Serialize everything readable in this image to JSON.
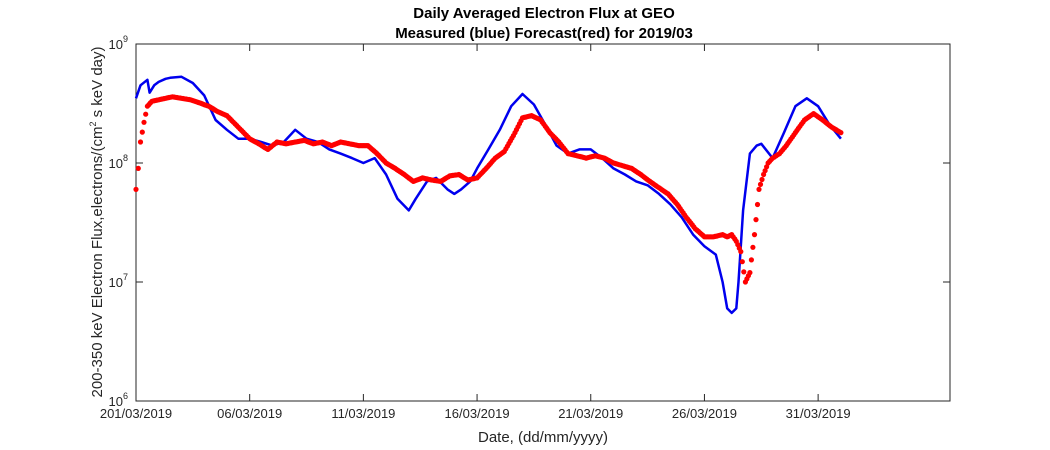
{
  "chart_data": {
    "type": "line",
    "title": "Daily Averaged Electron Flux at GEO",
    "subtitle": "Measured (blue) Forecast(red) for 2019/03",
    "xlabel": "Date, (dd/mm/yyyy)",
    "ylabel": "200-350 keV Electron Flux,electrons/(cm^2 s keV day)",
    "ylabel_parts": {
      "before": "200-350 keV Electron Flux,electrons/(cm",
      "sup": "2",
      "after": " s keV day)"
    },
    "yscale": "log",
    "ylim": [
      1000000,
      1000000000
    ],
    "xlim": [
      1,
      36.8
    ],
    "grid": false,
    "x_tick_labels": [
      "201/03/2019",
      "06/03/2019",
      "11/03/2019",
      "16/03/2019",
      "21/03/2019",
      "26/03/2019",
      "31/03/2019"
    ],
    "x_tick_values": [
      1,
      6,
      11,
      16,
      21,
      26,
      31
    ],
    "y_tick_labels": [
      {
        "base": "10",
        "exp": "6",
        "value": 1000000
      },
      {
        "base": "10",
        "exp": "7",
        "value": 10000000
      },
      {
        "base": "10",
        "exp": "8",
        "value": 100000000
      },
      {
        "base": "10",
        "exp": "9",
        "value": 1000000000
      }
    ],
    "series": [
      {
        "name": "Measured",
        "color": "#0000ee",
        "style": "line",
        "x": [
          1.0,
          1.2,
          1.5,
          1.6,
          1.8,
          2.0,
          2.3,
          2.5,
          3.0,
          3.5,
          4.0,
          4.5,
          5.0,
          5.5,
          6.0,
          6.5,
          7.0,
          7.5,
          8.0,
          8.5,
          9.0,
          9.5,
          10.0,
          10.5,
          11.0,
          11.5,
          12.0,
          12.5,
          13.0,
          13.3,
          13.8,
          14.2,
          14.7,
          15.0,
          15.3,
          15.7,
          16.0,
          16.5,
          17.0,
          17.5,
          18.0,
          18.5,
          19.0,
          19.5,
          20.0,
          20.5,
          21.0,
          21.5,
          22.0,
          22.5,
          23.0,
          23.5,
          24.0,
          24.5,
          25.0,
          25.5,
          26.0,
          26.5,
          26.8,
          27.0,
          27.2,
          27.4,
          27.5,
          27.7,
          28.0,
          28.3,
          28.5,
          29.0,
          29.5,
          30.0,
          30.5,
          31.0,
          31.5,
          32.0
        ],
        "y": [
          350000000,
          450000000,
          500000000,
          390000000,
          450000000,
          480000000,
          510000000,
          520000000,
          530000000,
          470000000,
          370000000,
          230000000,
          190000000,
          160000000,
          160000000,
          150000000,
          140000000,
          150000000,
          190000000,
          160000000,
          150000000,
          130000000,
          120000000,
          110000000,
          100000000,
          110000000,
          80000000,
          50000000,
          40000000,
          50000000,
          70000000,
          75000000,
          60000000,
          55000000,
          60000000,
          70000000,
          90000000,
          130000000,
          190000000,
          300000000,
          380000000,
          310000000,
          210000000,
          140000000,
          120000000,
          130000000,
          130000000,
          110000000,
          90000000,
          80000000,
          70000000,
          65000000,
          55000000,
          45000000,
          35000000,
          25000000,
          20000000,
          17000000,
          10000000,
          6000000,
          5500000,
          6000000,
          10000000,
          40000000,
          120000000,
          140000000,
          145000000,
          110000000,
          180000000,
          300000000,
          350000000,
          300000000,
          210000000,
          160000000
        ]
      },
      {
        "name": "Forecast",
        "color": "#ff0000",
        "style": "markers",
        "x": [
          1.0,
          1.1,
          1.2,
          1.35,
          1.5,
          1.7,
          2.0,
          2.3,
          2.6,
          3.0,
          3.4,
          3.8,
          4.2,
          4.6,
          5.0,
          5.5,
          6.0,
          6.4,
          6.8,
          7.2,
          7.6,
          8.0,
          8.4,
          8.8,
          9.2,
          9.6,
          10.0,
          10.4,
          10.8,
          11.2,
          11.6,
          12.0,
          12.4,
          12.8,
          13.2,
          13.6,
          14.0,
          14.4,
          14.8,
          15.2,
          15.6,
          16.0,
          16.4,
          16.8,
          17.2,
          17.6,
          18.0,
          18.4,
          18.8,
          19.2,
          19.6,
          20.0,
          20.4,
          20.8,
          21.2,
          21.6,
          22.0,
          22.4,
          22.8,
          23.2,
          23.6,
          24.0,
          24.4,
          24.8,
          25.2,
          25.6,
          26.0,
          26.4,
          26.8,
          27.0,
          27.2,
          27.4,
          27.6,
          27.8,
          28.0,
          28.2,
          28.4,
          28.6,
          28.8,
          29.0,
          29.3,
          29.6,
          30.0,
          30.4,
          30.8,
          31.2,
          31.6,
          32.0
        ],
        "y": [
          60000000,
          90000000,
          150000000,
          220000000,
          300000000,
          330000000,
          340000000,
          350000000,
          360000000,
          350000000,
          340000000,
          320000000,
          300000000,
          270000000,
          250000000,
          200000000,
          160000000,
          145000000,
          130000000,
          150000000,
          145000000,
          150000000,
          155000000,
          145000000,
          150000000,
          140000000,
          150000000,
          145000000,
          140000000,
          140000000,
          120000000,
          100000000,
          90000000,
          80000000,
          70000000,
          75000000,
          72000000,
          70000000,
          78000000,
          80000000,
          72000000,
          75000000,
          90000000,
          110000000,
          125000000,
          170000000,
          240000000,
          250000000,
          230000000,
          180000000,
          150000000,
          120000000,
          115000000,
          110000000,
          115000000,
          110000000,
          100000000,
          95000000,
          90000000,
          80000000,
          70000000,
          62000000,
          55000000,
          45000000,
          35000000,
          28000000,
          24000000,
          24000000,
          25000000,
          24000000,
          25000000,
          22000000,
          18000000,
          10000000,
          12000000,
          25000000,
          60000000,
          80000000,
          100000000,
          110000000,
          120000000,
          140000000,
          180000000,
          230000000,
          260000000,
          230000000,
          200000000,
          180000000
        ]
      }
    ]
  }
}
